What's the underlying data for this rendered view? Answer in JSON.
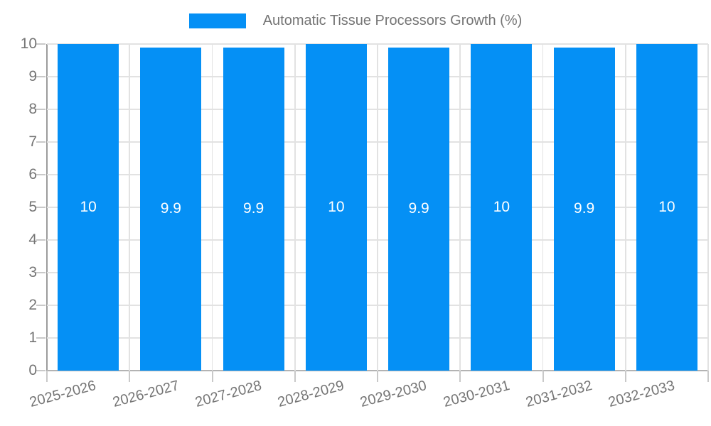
{
  "legend": {
    "label": "Automatic Tissue Processors Growth (%)"
  },
  "colors": {
    "bar": "#0590f5",
    "grid": "#e2e2e2",
    "axis_x": "#b3b3b3",
    "axis_y": "#9c9c9c",
    "tick": "#c9c9c9",
    "text": "#757575",
    "bar_value_label": "#ffffff"
  },
  "chart_data": {
    "type": "bar",
    "title": "",
    "legend": [
      "Automatic Tissue Processors Growth (%)"
    ],
    "legend_position": "top-center",
    "categories": [
      "2025-2026",
      "2026-2027",
      "2027-2028",
      "2028-2029",
      "2029-2030",
      "2030-2031",
      "2031-2032",
      "2032-2033"
    ],
    "values": [
      10,
      9.9,
      9.9,
      10,
      9.9,
      10,
      9.9,
      10
    ],
    "bar_value_labels": [
      "10",
      "9.9",
      "9.9",
      "10",
      "9.9",
      "10",
      "9.9",
      "10"
    ],
    "xlabel": "",
    "ylabel": "",
    "ylim": [
      0,
      10
    ],
    "ytick_labels": [
      "0",
      "1",
      "2",
      "3",
      "4",
      "5",
      "6",
      "7",
      "8",
      "9",
      "10"
    ],
    "grid": true,
    "x_label_rotation_deg": -15
  }
}
